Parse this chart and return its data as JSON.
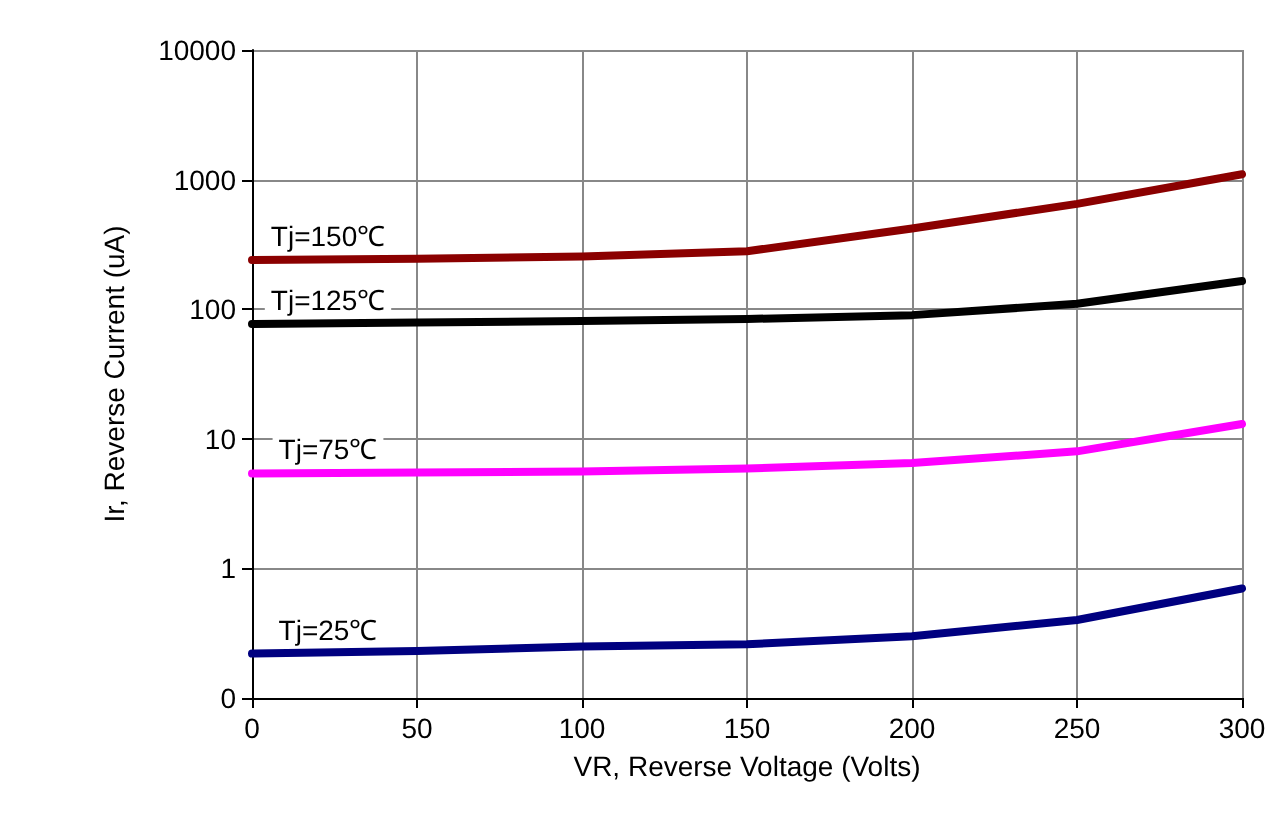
{
  "chart_data": {
    "type": "line",
    "xlabel": "VR, Reverse Voltage (Volts)",
    "ylabel": "Ir, Reverse Current (uA)",
    "x": [
      0,
      50,
      100,
      150,
      200,
      250,
      300
    ],
    "series": [
      {
        "name": "Tj=150℃",
        "color": "#8b0000",
        "values": [
          240,
          245,
          255,
          280,
          420,
          650,
          1100
        ]
      },
      {
        "name": "Tj=125℃",
        "color": "#000000",
        "values": [
          77,
          79,
          81,
          84,
          90,
          110,
          165
        ]
      },
      {
        "name": "Tj=75℃",
        "color": "#ff00ff",
        "values": [
          5.4,
          5.5,
          5.6,
          5.9,
          6.5,
          8,
          13
        ]
      },
      {
        "name": "Tj=25℃",
        "color": "#000080",
        "values": [
          0.22,
          0.23,
          0.25,
          0.26,
          0.3,
          0.4,
          0.7
        ]
      }
    ],
    "xlim": [
      0,
      300
    ],
    "xticks": [
      0,
      50,
      100,
      150,
      200,
      250,
      300
    ],
    "ylim": [
      0.1,
      10000
    ],
    "yticks": [
      {
        "value": 0.1,
        "label": "0"
      },
      1,
      10,
      100,
      1000,
      10000
    ],
    "log": "y",
    "grid": true,
    "legend": false,
    "marker": "none",
    "line_style": "solid"
  }
}
